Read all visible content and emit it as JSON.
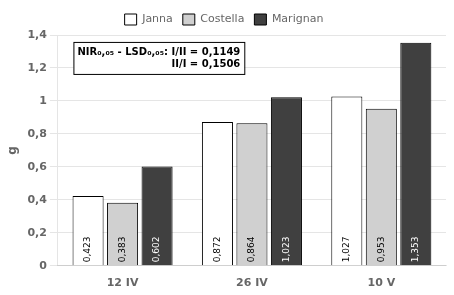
{
  "chart_data": {
    "type": "bar",
    "categories": [
      "12 IV",
      "26 IV",
      "10 V"
    ],
    "series": [
      {
        "name": "Janna",
        "color": "#ffffff",
        "values": [
          0.423,
          0.872,
          1.027
        ],
        "value_labels": [
          "0,423",
          "0,872",
          "1,027"
        ]
      },
      {
        "name": "Costella",
        "color": "#d0d0d0",
        "values": [
          0.383,
          0.864,
          0.953
        ],
        "value_labels": [
          "0,383",
          "0,864",
          "0,953"
        ]
      },
      {
        "name": "Marignan",
        "color": "#404040",
        "values": [
          0.602,
          1.023,
          1.353
        ],
        "value_labels": [
          "0,602",
          "1,023",
          "1,353"
        ]
      }
    ],
    "y_label": "g",
    "ylim": [
      0,
      1.4
    ],
    "yticks": [
      0,
      {
        "value": 0.2,
        "label": "0,2"
      },
      {
        "value": 0.4,
        "label": "0,4"
      },
      {
        "value": 0.6,
        "label": "0,6"
      },
      {
        "value": 0.8,
        "label": "0,8"
      },
      1,
      {
        "value": 1.2,
        "label": "1,2"
      },
      {
        "value": 1.4,
        "label": "1,4"
      }
    ],
    "annotation": "NIR₀,₀₅ - LSD₀,₀₅: I/II = 0,1149\nII/I = 0,1506",
    "grid": true,
    "legend": "top",
    "data_labels": true
  }
}
